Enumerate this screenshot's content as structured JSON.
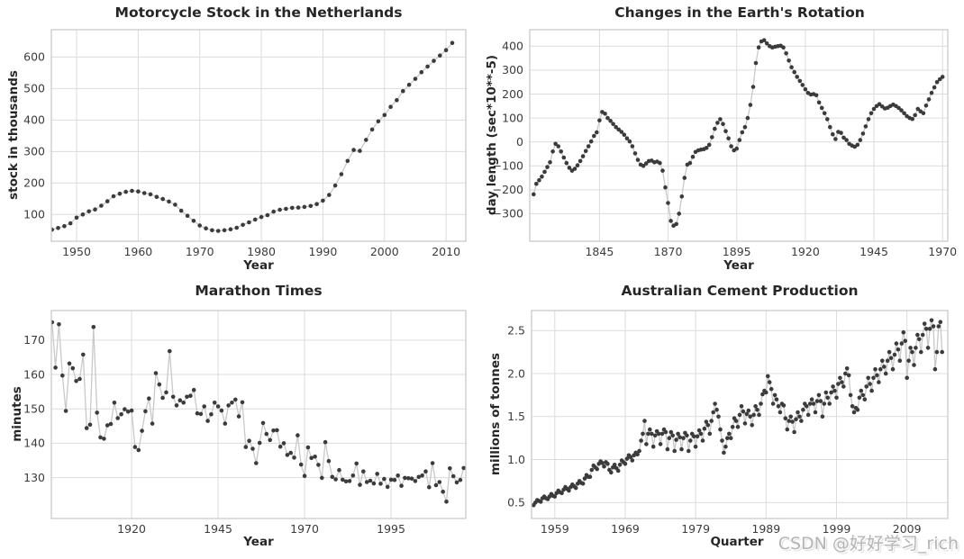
{
  "figure": {
    "background": "#ffffff",
    "watermark": {
      "text": "CSDN @好好学习_rich",
      "color": "#b4b4b4"
    }
  },
  "style": {
    "dot_color": "#3b3b3b",
    "line_color": "#c9c9c9",
    "grid_color": "#dcdcdc",
    "spine_color": "#c6c6c6",
    "tick_color": "#3c3c3c",
    "title_color": "#262626"
  },
  "chart_data": [
    {
      "type": "line",
      "title": "Motorcycle Stock in the Netherlands",
      "xlabel": "Year",
      "ylabel": "stock in thousands",
      "legend": "none",
      "grid": true,
      "x_start": 1946,
      "x_step": 1,
      "values": [
        52,
        57,
        63,
        72,
        90,
        100,
        110,
        116,
        128,
        142,
        158,
        166,
        172,
        175,
        173,
        168,
        164,
        156,
        149,
        141,
        131,
        112,
        96,
        80,
        65,
        56,
        50,
        48,
        50,
        53,
        58,
        67,
        75,
        84,
        92,
        98,
        109,
        115,
        118,
        121,
        122,
        124,
        127,
        133,
        144,
        162,
        192,
        228,
        270,
        305,
        302,
        337,
        370,
        396,
        416,
        442,
        463,
        492,
        512,
        531,
        552,
        570,
        588,
        605,
        622,
        645
      ],
      "xlim": [
        1945.9,
        2013.2
      ],
      "ylim": [
        15,
        687
      ],
      "xticks": {
        "values": [
          1950,
          1960,
          1970,
          1980,
          1990,
          2000,
          2010
        ],
        "labels": [
          "1950",
          "1960",
          "1970",
          "1980",
          "1990",
          "2000",
          "2010"
        ]
      },
      "yticks": {
        "values": [
          100,
          200,
          300,
          400,
          500,
          600
        ],
        "labels": [
          "100",
          "200",
          "300",
          "400",
          "500",
          "600"
        ]
      }
    },
    {
      "type": "line",
      "title": "Changes in the Earth's Rotation",
      "xlabel": "Year",
      "ylabel": "day length (sec*10**-5)",
      "legend": "none",
      "grid": true,
      "x_start": 1821,
      "x_step": 1,
      "values": [
        -219,
        -175,
        -160,
        -145,
        -125,
        -105,
        -85,
        -40,
        -8,
        -18,
        -40,
        -65,
        -88,
        -108,
        -120,
        -112,
        -98,
        -80,
        -60,
        -38,
        -18,
        2,
        25,
        40,
        90,
        125,
        118,
        100,
        88,
        75,
        62,
        52,
        42,
        30,
        15,
        2,
        -18,
        -48,
        -75,
        -95,
        -100,
        -90,
        -80,
        -78,
        -85,
        -82,
        -88,
        -120,
        -190,
        -255,
        -330,
        -350,
        -343,
        -300,
        -228,
        -150,
        -95,
        -88,
        -62,
        -42,
        -35,
        -32,
        -30,
        -25,
        -12,
        20,
        55,
        80,
        95,
        75,
        45,
        15,
        -18,
        -35,
        -28,
        8,
        40,
        62,
        100,
        155,
        230,
        330,
        395,
        420,
        425,
        412,
        400,
        395,
        398,
        400,
        402,
        395,
        370,
        340,
        312,
        292,
        272,
        255,
        238,
        220,
        205,
        198,
        200,
        195,
        165,
        142,
        120,
        95,
        62,
        32,
        12,
        42,
        38,
        18,
        8,
        -8,
        -15,
        -20,
        -12,
        8,
        35,
        65,
        95,
        120,
        138,
        150,
        158,
        148,
        140,
        143,
        150,
        156,
        150,
        142,
        132,
        120,
        108,
        100,
        96,
        112,
        138,
        128,
        120,
        152,
        178,
        205,
        228,
        250,
        262,
        272
      ],
      "xlim": [
        1819.6,
        1971.9
      ],
      "ylim": [
        -415,
        469
      ],
      "xticks": {
        "values": [
          1845,
          1870,
          1895,
          1920,
          1945,
          1970
        ],
        "labels": [
          "1845",
          "1870",
          "1895",
          "1920",
          "1945",
          "1970"
        ]
      },
      "yticks": {
        "values": [
          -300,
          -200,
          -100,
          0,
          100,
          200,
          300,
          400
        ],
        "labels": [
          "−300",
          "−200",
          "−100",
          "0",
          "100",
          "200",
          "300",
          "400"
        ]
      }
    },
    {
      "type": "line",
      "title": "Marathon Times",
      "xlabel": "Year",
      "ylabel": "minutes",
      "legend": "none",
      "grid": true,
      "x_start": 1897,
      "x_step": 1,
      "values": [
        175.2,
        162,
        174.6,
        159.7,
        149.4,
        163.2,
        161.8,
        158.1,
        158.7,
        165.8,
        144.4,
        145.4,
        173.8,
        148.9,
        141.7,
        141.3,
        145.2,
        145.6,
        151.8,
        147.3,
        148.4,
        149.9,
        149.2,
        149.5,
        138.9,
        138,
        143.6,
        149.3,
        153,
        145.7,
        160.4,
        157.1,
        153.2,
        154.8,
        166.8,
        153.5,
        151,
        152.5,
        151.8,
        153.5,
        153.8,
        155.5,
        148.7,
        148.5,
        150.7,
        146.5,
        148.4,
        151.8,
        150.7,
        149.5,
        145.7,
        151,
        151.8,
        152.7,
        147.8,
        151.9,
        138.9,
        140.7,
        138.4,
        134.2,
        140.1,
        145.9,
        142.7,
        140.9,
        143.7,
        143.8,
        139,
        140,
        136.6,
        137.2,
        135.8,
        142.3,
        133.8,
        130.5,
        138.8,
        135.7,
        136.1,
        133.7,
        129.9,
        140.3,
        134.8,
        130.2,
        129.5,
        132.2,
        129.4,
        128.9,
        129,
        130.6,
        134.1,
        127.9,
        131.8,
        128.7,
        129.1,
        128.3,
        131.1,
        128.2,
        129.6,
        127.3,
        129.4,
        129.3,
        130.6,
        127.6,
        129.9,
        129.8,
        129.7,
        129,
        130.2,
        130.6,
        131.8,
        127.2,
        134.2,
        127.8,
        128.7,
        125.9,
        123,
        132.7,
        130.4,
        128.6,
        129.3,
        132.8
      ],
      "xlim": [
        1896.8,
        2016.6
      ],
      "ylim": [
        118.1,
        178.6
      ],
      "xticks": {
        "values": [
          1920,
          1945,
          1970,
          1995
        ],
        "labels": [
          "1920",
          "1945",
          "1970",
          "1995"
        ]
      },
      "yticks": {
        "values": [
          130,
          140,
          150,
          160,
          170
        ],
        "labels": [
          "130",
          "140",
          "150",
          "160",
          "170"
        ]
      }
    },
    {
      "type": "line",
      "title": "Australian Cement Production",
      "xlabel": "Quarter",
      "ylabel": "millions of tonnes",
      "legend": "none",
      "grid": true,
      "x_start": 1956,
      "x_step": 0.25,
      "values": [
        0.47,
        0.5,
        0.53,
        0.52,
        0.51,
        0.55,
        0.57,
        0.55,
        0.54,
        0.57,
        0.6,
        0.58,
        0.57,
        0.61,
        0.64,
        0.62,
        0.61,
        0.65,
        0.68,
        0.66,
        0.64,
        0.68,
        0.71,
        0.69,
        0.67,
        0.72,
        0.75,
        0.73,
        0.72,
        0.78,
        0.82,
        0.8,
        0.8,
        0.88,
        0.93,
        0.91,
        0.89,
        0.95,
        0.98,
        0.96,
        0.92,
        0.97,
        0.95,
        0.88,
        0.85,
        0.91,
        0.94,
        0.9,
        0.87,
        0.94,
        0.99,
        0.97,
        0.95,
        1.01,
        1.05,
        1.03,
        0.99,
        1.05,
        1.08,
        1.06,
        1.1,
        1.22,
        1.3,
        1.45,
        1.18,
        1.3,
        1.35,
        1.3,
        1.15,
        1.28,
        1.33,
        1.3,
        1.18,
        1.3,
        1.35,
        1.32,
        1.12,
        1.25,
        1.32,
        1.28,
        1.1,
        1.23,
        1.3,
        1.26,
        1.12,
        1.25,
        1.31,
        1.28,
        1.1,
        1.22,
        1.3,
        1.27,
        1.15,
        1.27,
        1.34,
        1.3,
        1.22,
        1.36,
        1.44,
        1.4,
        1.3,
        1.45,
        1.55,
        1.65,
        1.58,
        1.5,
        1.35,
        1.22,
        1.08,
        1.15,
        1.25,
        1.3,
        1.25,
        1.38,
        1.48,
        1.45,
        1.38,
        1.52,
        1.62,
        1.56,
        1.42,
        1.53,
        1.57,
        1.5,
        1.4,
        1.52,
        1.62,
        1.58,
        1.52,
        1.65,
        1.76,
        1.8,
        1.78,
        1.97,
        1.9,
        1.82,
        1.65,
        1.75,
        1.7,
        1.62,
        1.55,
        1.65,
        1.63,
        1.48,
        1.35,
        1.45,
        1.5,
        1.44,
        1.32,
        1.47,
        1.55,
        1.5,
        1.45,
        1.58,
        1.65,
        1.62,
        1.52,
        1.65,
        1.7,
        1.65,
        1.55,
        1.68,
        1.75,
        1.68,
        1.5,
        1.65,
        1.78,
        1.72,
        1.65,
        1.78,
        1.85,
        1.8,
        1.72,
        1.88,
        1.95,
        1.9,
        1.85,
        2.0,
        2.06,
        1.98,
        1.75,
        1.62,
        1.55,
        1.6,
        1.58,
        1.72,
        1.8,
        1.75,
        1.7,
        1.85,
        1.95,
        1.88,
        1.8,
        1.95,
        2.05,
        1.98,
        1.9,
        2.05,
        2.15,
        2.08,
        2.0,
        2.15,
        2.25,
        2.18,
        2.05,
        2.22,
        2.35,
        2.28,
        2.15,
        2.35,
        2.48,
        2.38,
        1.95,
        2.15,
        2.3,
        2.25,
        2.1,
        2.3,
        2.45,
        2.4,
        2.25,
        2.45,
        2.58,
        2.52,
        2.3,
        2.52,
        2.62,
        2.55,
        2.05,
        2.25,
        2.55,
        2.6,
        2.25
      ],
      "xlim": [
        1955.7,
        2014.8
      ],
      "ylim": [
        0.315,
        2.733
      ],
      "xticks": {
        "values": [
          1959,
          1969,
          1979,
          1989,
          1999,
          2009
        ],
        "labels": [
          "1959",
          "1969",
          "1979",
          "1989",
          "1999",
          "2009"
        ]
      },
      "yticks": {
        "values": [
          0.5,
          1.0,
          1.5,
          2.0,
          2.5
        ],
        "labels": [
          "0.5",
          "1.0",
          "1.5",
          "2.0",
          "2.5"
        ]
      }
    }
  ]
}
